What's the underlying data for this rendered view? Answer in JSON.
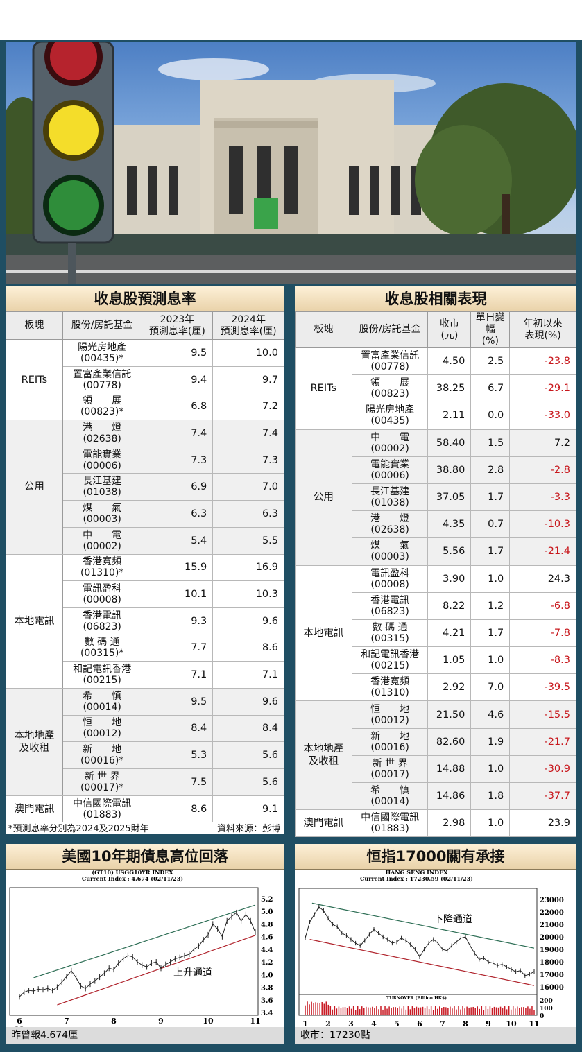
{
  "left_table": {
    "title": "收息股預測息率",
    "headers": [
      "板塊",
      "股份/房託基金",
      "2023年\n預測息率(厘)",
      "2024年\n預測息率(厘)"
    ],
    "groups": [
      {
        "sector": "REITs",
        "rows": [
          {
            "name": "陽光房地產",
            "code": "(00435)*",
            "a": "9.5",
            "b": "10.0"
          },
          {
            "name": "置富產業信託",
            "code": "(00778)",
            "a": "9.4",
            "b": "9.7"
          },
          {
            "name": "領　　展",
            "code": "(00823)*",
            "a": "6.8",
            "b": "7.2"
          }
        ]
      },
      {
        "sector": "公用",
        "rows": [
          {
            "name": "港　　燈",
            "code": "(02638)",
            "a": "7.4",
            "b": "7.4"
          },
          {
            "name": "電能實業",
            "code": "(00006)",
            "a": "7.3",
            "b": "7.3"
          },
          {
            "name": "長江基建",
            "code": "(01038)",
            "a": "6.9",
            "b": "7.0"
          },
          {
            "name": "煤　　氣",
            "code": "(00003)",
            "a": "6.3",
            "b": "6.3"
          },
          {
            "name": "中　　電",
            "code": "(00002)",
            "a": "5.4",
            "b": "5.5"
          }
        ]
      },
      {
        "sector": "本地電訊",
        "rows": [
          {
            "name": "香港寬頻",
            "code": "(01310)*",
            "a": "15.9",
            "b": "16.9"
          },
          {
            "name": "電訊盈科",
            "code": "(00008)",
            "a": "10.1",
            "b": "10.3"
          },
          {
            "name": "香港電訊",
            "code": "(06823)",
            "a": "9.3",
            "b": "9.6"
          },
          {
            "name": "數 碼 通",
            "code": "(00315)*",
            "a": "7.7",
            "b": "8.6"
          },
          {
            "name": "和記電訊香港",
            "code": "(00215)",
            "a": "7.1",
            "b": "7.1"
          }
        ]
      },
      {
        "sector": "本地地產\n及收租",
        "rows": [
          {
            "name": "希　　慎",
            "code": "(00014)",
            "a": "9.5",
            "b": "9.6"
          },
          {
            "name": "恒　　地",
            "code": "(00012)",
            "a": "8.4",
            "b": "8.4"
          },
          {
            "name": "新　　地",
            "code": "(00016)*",
            "a": "5.3",
            "b": "5.6"
          },
          {
            "name": "新 世 界",
            "code": "(00017)*",
            "a": "7.5",
            "b": "5.6"
          }
        ]
      },
      {
        "sector": "澳門電訊",
        "rows": [
          {
            "name": "中信國際電訊",
            "code": "(01883)",
            "a": "8.6",
            "b": "9.1"
          }
        ]
      }
    ],
    "note": "*預測息率分別為2024及2025財年",
    "source": "資料來源：彭博"
  },
  "right_table": {
    "title": "收息股相關表現",
    "headers": [
      "板塊",
      "股份/房託基金",
      "收市\n(元)",
      "單日變幅\n(%)",
      "年初以來\n表現(%)"
    ],
    "groups": [
      {
        "sector": "REITs",
        "rows": [
          {
            "name": "置富產業信託",
            "code": "(00778)",
            "close": "4.50",
            "chg": "2.5",
            "ytd": "-23.8"
          },
          {
            "name": "領　　展",
            "code": "(00823)",
            "close": "38.25",
            "chg": "6.7",
            "ytd": "-29.1"
          },
          {
            "name": "陽光房地產",
            "code": "(00435)",
            "close": "2.11",
            "chg": "0.0",
            "ytd": "-33.0"
          }
        ]
      },
      {
        "sector": "公用",
        "rows": [
          {
            "name": "中　　電",
            "code": "(00002)",
            "close": "58.40",
            "chg": "1.5",
            "ytd": "7.2"
          },
          {
            "name": "電能實業",
            "code": "(00006)",
            "close": "38.80",
            "chg": "2.8",
            "ytd": "-2.8"
          },
          {
            "name": "長江基建",
            "code": "(01038)",
            "close": "37.05",
            "chg": "1.7",
            "ytd": "-3.3"
          },
          {
            "name": "港　　燈",
            "code": "(02638)",
            "close": "4.35",
            "chg": "0.7",
            "ytd": "-10.3"
          },
          {
            "name": "煤　　氣",
            "code": "(00003)",
            "close": "5.56",
            "chg": "1.7",
            "ytd": "-21.4"
          }
        ]
      },
      {
        "sector": "本地電訊",
        "rows": [
          {
            "name": "電訊盈科",
            "code": "(00008)",
            "close": "3.90",
            "chg": "1.0",
            "ytd": "24.3"
          },
          {
            "name": "香港電訊",
            "code": "(06823)",
            "close": "8.22",
            "chg": "1.2",
            "ytd": "-6.8"
          },
          {
            "name": "數 碼 通",
            "code": "(00315)",
            "close": "4.21",
            "chg": "1.7",
            "ytd": "-7.8"
          },
          {
            "name": "和記電訊香港",
            "code": "(00215)",
            "close": "1.05",
            "chg": "1.0",
            "ytd": "-8.3"
          },
          {
            "name": "香港寬頻",
            "code": "(01310)",
            "close": "2.92",
            "chg": "7.0",
            "ytd": "-39.5"
          }
        ]
      },
      {
        "sector": "本地地產\n及收租",
        "rows": [
          {
            "name": "恒　　地",
            "code": "(00012)",
            "close": "21.50",
            "chg": "4.6",
            "ytd": "-15.5"
          },
          {
            "name": "新　　地",
            "code": "(00016)",
            "close": "82.60",
            "chg": "1.9",
            "ytd": "-21.7"
          },
          {
            "name": "新 世 界",
            "code": "(00017)",
            "close": "14.88",
            "chg": "1.0",
            "ytd": "-30.9"
          },
          {
            "name": "希　　慎",
            "code": "(00014)",
            "close": "14.86",
            "chg": "1.8",
            "ytd": "-37.7"
          }
        ]
      },
      {
        "sector": "澳門電訊",
        "rows": [
          {
            "name": "中信國際電訊",
            "code": "(01883)",
            "close": "2.98",
            "chg": "1.0",
            "ytd": "23.9"
          }
        ]
      }
    ]
  },
  "colors": {
    "negative": "#c8181d",
    "panel_header": "#e9d2a9",
    "background": "#1f4e63"
  },
  "chart_data": [
    {
      "type": "line",
      "title": "美國10年期債息高位回落",
      "chart_title": "(GT10) USGG10YR INDEX",
      "chart_subtitle": "Current Index : 4.674 (02/11/23)",
      "x_ticks": [
        "6",
        "7",
        "8",
        "9",
        "10",
        "11"
      ],
      "x_year": "23",
      "ylim": [
        3.4,
        5.2
      ],
      "y_ticks": [
        "5.2",
        "5.0",
        "4.8",
        "4.6",
        "4.4",
        "4.2",
        "4.0",
        "3.8",
        "3.6",
        "3.4"
      ],
      "annotation": "上升通道",
      "x": [
        6.0,
        6.1,
        6.2,
        6.3,
        6.4,
        6.5,
        6.6,
        6.7,
        6.8,
        6.9,
        7.0,
        7.1,
        7.2,
        7.3,
        7.4,
        7.5,
        7.6,
        7.7,
        7.8,
        7.9,
        8.0,
        8.1,
        8.2,
        8.3,
        8.4,
        8.5,
        8.6,
        8.7,
        8.8,
        8.9,
        9.0,
        9.1,
        9.2,
        9.3,
        9.4,
        9.5,
        9.6,
        9.7,
        9.8,
        9.9,
        10.0,
        10.1,
        10.2,
        10.3,
        10.4,
        10.5,
        10.6,
        10.7,
        10.8,
        10.9,
        11.0
      ],
      "y": [
        3.65,
        3.72,
        3.75,
        3.74,
        3.77,
        3.76,
        3.78,
        3.75,
        3.8,
        3.88,
        3.97,
        4.06,
        3.95,
        3.82,
        3.78,
        3.85,
        3.9,
        3.96,
        4.02,
        4.1,
        4.08,
        4.18,
        4.25,
        4.3,
        4.28,
        4.2,
        4.15,
        4.12,
        4.18,
        4.2,
        4.1,
        4.16,
        4.2,
        4.25,
        4.27,
        4.3,
        4.32,
        4.4,
        4.45,
        4.55,
        4.63,
        4.8,
        4.72,
        4.6,
        4.85,
        4.92,
        4.98,
        4.85,
        4.95,
        4.85,
        4.67
      ],
      "channel_upper": [
        [
          6.3,
          3.95
        ],
        [
          11.0,
          5.1
        ]
      ],
      "channel_lower": [
        [
          6.8,
          3.52
        ],
        [
          11.0,
          4.62
        ]
      ],
      "footer": "昨曾報4.674厘"
    },
    {
      "type": "line",
      "title": "恒指17000關有承接",
      "chart_title": "HANG SENG INDEX",
      "chart_subtitle": "Current Index : 17230.59 (02/11/23)",
      "x_ticks": [
        "1",
        "2",
        "3",
        "4",
        "5",
        "6",
        "7",
        "8",
        "9",
        "10",
        "11"
      ],
      "x_year": "23",
      "ylim": [
        16000,
        23000
      ],
      "y_ticks": [
        "23000",
        "22000",
        "21000",
        "20000",
        "19000",
        "18000",
        "17000",
        "16000"
      ],
      "volume_label": "TURNOVER (Billion HK$)",
      "volume_ticks": [
        "200",
        "100",
        "0"
      ],
      "annotation": "下降通道",
      "x": [
        1.0,
        1.2,
        1.4,
        1.6,
        1.8,
        2.0,
        2.2,
        2.4,
        2.6,
        2.8,
        3.0,
        3.2,
        3.4,
        3.6,
        3.8,
        4.0,
        4.2,
        4.4,
        4.6,
        4.8,
        5.0,
        5.2,
        5.4,
        5.6,
        5.8,
        6.0,
        6.2,
        6.4,
        6.6,
        6.8,
        7.0,
        7.2,
        7.4,
        7.6,
        7.8,
        8.0,
        8.2,
        8.4,
        8.6,
        8.8,
        9.0,
        9.2,
        9.4,
        9.6,
        9.8,
        10.0,
        10.2,
        10.4,
        10.6,
        10.8,
        11.0
      ],
      "y": [
        19900,
        21200,
        21800,
        22400,
        22100,
        21500,
        21000,
        20800,
        20300,
        20100,
        19800,
        19500,
        19300,
        19700,
        20200,
        20600,
        20300,
        20000,
        19800,
        19500,
        19600,
        19900,
        19700,
        19400,
        19000,
        18400,
        19000,
        19500,
        19800,
        19500,
        19000,
        18900,
        19300,
        19600,
        19900,
        20000,
        19300,
        18700,
        18200,
        18300,
        18000,
        17900,
        17700,
        17800,
        17600,
        17400,
        17200,
        17300,
        16900,
        17000,
        17230
      ],
      "channel_upper": [
        [
          1.3,
          22700
        ],
        [
          11.0,
          19100
        ]
      ],
      "channel_lower": [
        [
          1.2,
          19800
        ],
        [
          11.0,
          16100
        ]
      ],
      "footer": "收市：17230點"
    }
  ]
}
